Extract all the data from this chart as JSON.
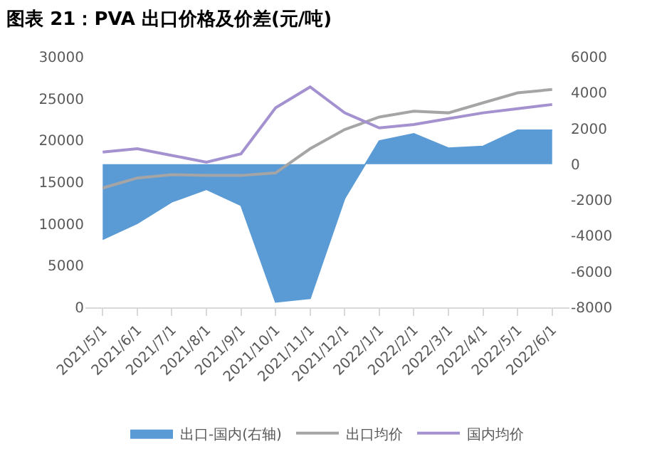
{
  "chart_data": {
    "type": "line",
    "title": "图表 21：PVA 出口价格及价差(元/吨)",
    "categories": [
      "2021/5/1",
      "2021/6/1",
      "2021/7/1",
      "2021/8/1",
      "2021/9/1",
      "2021/10/1",
      "2021/11/1",
      "2021/12/1",
      "2022/1/1",
      "2022/2/1",
      "2022/3/1",
      "2022/4/1",
      "2022/5/1",
      "2022/6/1"
    ],
    "series": [
      {
        "name": "出口-国内(右轴)",
        "type": "area",
        "axis": "y2",
        "color": "#5b9bd5",
        "values": [
          -4200,
          -3300,
          -2100,
          -1400,
          -2300,
          -7700,
          -7500,
          -1900,
          1300,
          1700,
          900,
          1000,
          1900,
          1900
        ]
      },
      {
        "name": "出口均价",
        "type": "line",
        "color": "#a5a5a5",
        "values": [
          14300,
          15500,
          15900,
          15800,
          15800,
          16100,
          19000,
          21300,
          22800,
          23500,
          23300,
          24500,
          25700,
          26100
        ]
      },
      {
        "name": "国内均价",
        "type": "line",
        "color": "#a491d0",
        "values": [
          18600,
          19000,
          18200,
          17400,
          18400,
          23900,
          26400,
          23300,
          21500,
          21900,
          22600,
          23300,
          23800,
          24300
        ]
      }
    ],
    "ylim": [
      0,
      30000
    ],
    "yticks": [
      0,
      5000,
      10000,
      15000,
      20000,
      25000,
      30000
    ],
    "y2lim": [
      -8000,
      6000
    ],
    "y2ticks": [
      -8000,
      -6000,
      -4000,
      -2000,
      0,
      2000,
      4000,
      6000
    ],
    "grid": false,
    "legend": "bottom"
  }
}
